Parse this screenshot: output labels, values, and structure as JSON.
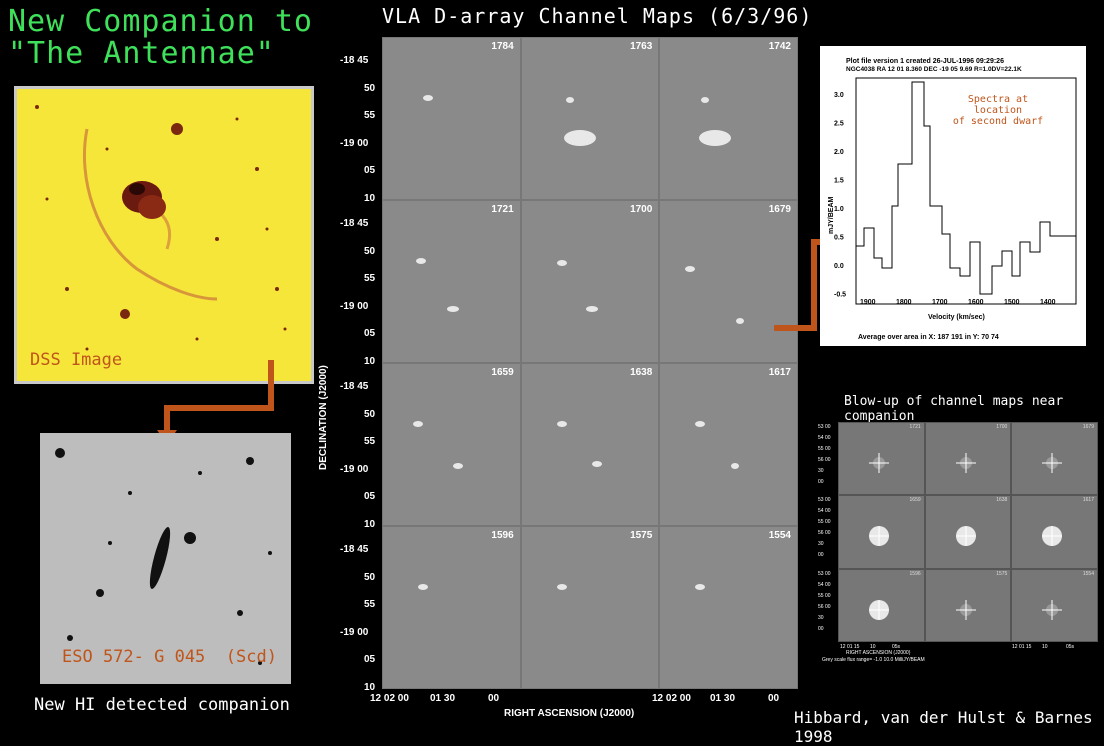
{
  "title": {
    "line1": "New Companion to",
    "line2": "\"The Antennae\""
  },
  "channel_maps": {
    "title": "VLA D-array Channel Maps (6/3/96)",
    "channels": [
      "1784",
      "1763",
      "1742",
      "1721",
      "1700",
      "1679",
      "1659",
      "1638",
      "1617",
      "1596",
      "1575",
      "1554"
    ],
    "dec_ticks": [
      "-18 45",
      "50",
      "55",
      "-19 00",
      "05",
      "10"
    ],
    "ra_ticks": [
      "12 02 00",
      "01 30",
      "00"
    ],
    "xlabel": "RIGHT ASCENSION (J2000)",
    "ylabel": "DECLINATION (J2000)"
  },
  "dss": {
    "label": "DSS Image"
  },
  "companion": {
    "label": "ESO 572- G 045  (Scd)",
    "caption": "New HI detected companion"
  },
  "spectrum": {
    "header1": "Plot file version  1  created 26-JUL-1996 09:29:26",
    "header2": "NGC4038   RA 12 01  8.360   DEC -19 05  9.69   R=1.0DV=22.1K",
    "annotation1": "Spectra at location",
    "annotation2": "of second dwarf",
    "ylabel": "mJY/BEAM",
    "xlabel": "Velocity (km/sec)",
    "footer": "Average over area in X:  187  191    in Y:   70   74",
    "yticks": [
      "3.0",
      "2.5",
      "2.0",
      "1.5",
      "1.0",
      "0.5",
      "0.0",
      "-0.5"
    ],
    "xticks": [
      "1900",
      "1800",
      "1700",
      "1600",
      "1500",
      "1400"
    ]
  },
  "blowup": {
    "title": "Blow-up of channel maps near companion",
    "channels": [
      "1721",
      "1700",
      "1679",
      "1659",
      "1638",
      "1617",
      "1596",
      "1575",
      "1554"
    ],
    "dec_ticks": [
      "53 00",
      "54 00",
      "55 00",
      "56 00",
      "30",
      "00"
    ],
    "ra_ticks": [
      "12 01 15",
      "10",
      "05s"
    ],
    "xlabel": "RIGHT ASCENSION (J2000)",
    "footer": "Grey scale flux range=  -1.0    10.0 MilliJY/BEAM"
  },
  "credit": "Hibbard, van der Hulst & Barnes 1998",
  "colors": {
    "green": "#3fe05a",
    "orange": "#c0551b",
    "dss_yellow": "#f7e63a"
  }
}
